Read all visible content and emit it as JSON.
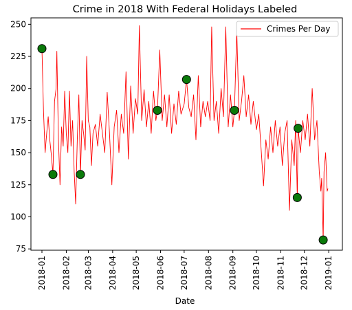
{
  "chart_data": {
    "type": "line",
    "title": "Crime in 2018 With Federal Holidays Labeled",
    "xlabel": "Date",
    "ylabel": "",
    "x_range": [
      "2018-01-01",
      "2018-12-31"
    ],
    "ylim": [
      74,
      255
    ],
    "x_ticks": [
      "2018-01",
      "2018-02",
      "2018-03",
      "2018-04",
      "2018-05",
      "2018-06",
      "2018-07",
      "2018-08",
      "2018-09",
      "2018-10",
      "2018-11",
      "2018-12",
      "2019-01"
    ],
    "y_ticks": [
      75,
      100,
      125,
      150,
      175,
      200,
      225,
      250
    ],
    "grid": false,
    "legend": {
      "position": "top-right",
      "entries": [
        "Crimes Per Day"
      ]
    },
    "colors": {
      "line": "#ff0000",
      "marker_fill": "#0a7a0a",
      "marker_edge": "#000000"
    },
    "series": [
      {
        "name": "Crimes Per Day",
        "points": [
          [
            "2018-01-01",
            231
          ],
          [
            "2018-01-03",
            182
          ],
          [
            "2018-01-05",
            150
          ],
          [
            "2018-01-07",
            165
          ],
          [
            "2018-01-09",
            178
          ],
          [
            "2018-01-11",
            160
          ],
          [
            "2018-01-13",
            148
          ],
          [
            "2018-01-15",
            133
          ],
          [
            "2018-01-17",
            190
          ],
          [
            "2018-01-19",
            200
          ],
          [
            "2018-01-20",
            229
          ],
          [
            "2018-01-22",
            160
          ],
          [
            "2018-01-24",
            125
          ],
          [
            "2018-01-26",
            170
          ],
          [
            "2018-01-28",
            155
          ],
          [
            "2018-01-30",
            198
          ],
          [
            "2018-02-01",
            165
          ],
          [
            "2018-02-03",
            150
          ],
          [
            "2018-02-05",
            198
          ],
          [
            "2018-02-07",
            155
          ],
          [
            "2018-02-09",
            175
          ],
          [
            "2018-02-11",
            135
          ],
          [
            "2018-02-13",
            110
          ],
          [
            "2018-02-15",
            160
          ],
          [
            "2018-02-17",
            195
          ],
          [
            "2018-02-19",
            133
          ],
          [
            "2018-02-21",
            175
          ],
          [
            "2018-02-23",
            165
          ],
          [
            "2018-02-25",
            152
          ],
          [
            "2018-02-27",
            225
          ],
          [
            "2018-03-01",
            175
          ],
          [
            "2018-03-03",
            170
          ],
          [
            "2018-03-05",
            140
          ],
          [
            "2018-03-07",
            165
          ],
          [
            "2018-03-10",
            172
          ],
          [
            "2018-03-13",
            155
          ],
          [
            "2018-03-16",
            180
          ],
          [
            "2018-03-19",
            165
          ],
          [
            "2018-03-22",
            150
          ],
          [
            "2018-03-25",
            197
          ],
          [
            "2018-03-28",
            165
          ],
          [
            "2018-03-31",
            125
          ],
          [
            "2018-04-03",
            170
          ],
          [
            "2018-04-06",
            183
          ],
          [
            "2018-04-09",
            150
          ],
          [
            "2018-04-12",
            180
          ],
          [
            "2018-04-15",
            165
          ],
          [
            "2018-04-18",
            213
          ],
          [
            "2018-04-21",
            145
          ],
          [
            "2018-04-24",
            202
          ],
          [
            "2018-04-27",
            165
          ],
          [
            "2018-04-30",
            192
          ],
          [
            "2018-05-03",
            180
          ],
          [
            "2018-05-05",
            249
          ],
          [
            "2018-05-08",
            175
          ],
          [
            "2018-05-11",
            199
          ],
          [
            "2018-05-14",
            170
          ],
          [
            "2018-05-17",
            190
          ],
          [
            "2018-05-20",
            165
          ],
          [
            "2018-05-23",
            198
          ],
          [
            "2018-05-26",
            175
          ],
          [
            "2018-05-28",
            183
          ],
          [
            "2018-05-31",
            230
          ],
          [
            "2018-06-03",
            175
          ],
          [
            "2018-06-06",
            195
          ],
          [
            "2018-06-09",
            170
          ],
          [
            "2018-06-12",
            195
          ],
          [
            "2018-06-15",
            165
          ],
          [
            "2018-06-18",
            188
          ],
          [
            "2018-06-21",
            172
          ],
          [
            "2018-06-24",
            198
          ],
          [
            "2018-06-27",
            180
          ],
          [
            "2018-07-01",
            188
          ],
          [
            "2018-07-04",
            207
          ],
          [
            "2018-07-07",
            185
          ],
          [
            "2018-07-10",
            178
          ],
          [
            "2018-07-13",
            195
          ],
          [
            "2018-07-16",
            160
          ],
          [
            "2018-07-19",
            210
          ],
          [
            "2018-07-22",
            170
          ],
          [
            "2018-07-25",
            190
          ],
          [
            "2018-07-28",
            178
          ],
          [
            "2018-07-31",
            190
          ],
          [
            "2018-08-03",
            175
          ],
          [
            "2018-08-05",
            248
          ],
          [
            "2018-08-08",
            175
          ],
          [
            "2018-08-11",
            190
          ],
          [
            "2018-08-14",
            165
          ],
          [
            "2018-08-17",
            200
          ],
          [
            "2018-08-20",
            178
          ],
          [
            "2018-08-23",
            248
          ],
          [
            "2018-08-26",
            170
          ],
          [
            "2018-08-29",
            195
          ],
          [
            "2018-09-01",
            170
          ],
          [
            "2018-09-03",
            183
          ],
          [
            "2018-09-06",
            245
          ],
          [
            "2018-09-09",
            175
          ],
          [
            "2018-09-12",
            190
          ],
          [
            "2018-09-15",
            210
          ],
          [
            "2018-09-18",
            178
          ],
          [
            "2018-09-21",
            195
          ],
          [
            "2018-09-24",
            172
          ],
          [
            "2018-09-27",
            190
          ],
          [
            "2018-10-01",
            168
          ],
          [
            "2018-10-04",
            180
          ],
          [
            "2018-10-07",
            152
          ],
          [
            "2018-10-10",
            124
          ],
          [
            "2018-10-13",
            160
          ],
          [
            "2018-10-16",
            145
          ],
          [
            "2018-10-19",
            170
          ],
          [
            "2018-10-22",
            150
          ],
          [
            "2018-10-25",
            175
          ],
          [
            "2018-10-28",
            155
          ],
          [
            "2018-10-31",
            170
          ],
          [
            "2018-11-03",
            140
          ],
          [
            "2018-11-06",
            165
          ],
          [
            "2018-11-09",
            175
          ],
          [
            "2018-11-12",
            105
          ],
          [
            "2018-11-15",
            160
          ],
          [
            "2018-11-18",
            140
          ],
          [
            "2018-11-20",
            175
          ],
          [
            "2018-11-22",
            115
          ],
          [
            "2018-11-23",
            169
          ],
          [
            "2018-11-26",
            150
          ],
          [
            "2018-11-29",
            175
          ],
          [
            "2018-12-02",
            160
          ],
          [
            "2018-12-05",
            180
          ],
          [
            "2018-12-08",
            155
          ],
          [
            "2018-12-11",
            200
          ],
          [
            "2018-12-14",
            160
          ],
          [
            "2018-12-17",
            175
          ],
          [
            "2018-12-20",
            135
          ],
          [
            "2018-12-22",
            120
          ],
          [
            "2018-12-23",
            130
          ],
          [
            "2018-12-25",
            82
          ],
          [
            "2018-12-26",
            135
          ],
          [
            "2018-12-28",
            150
          ],
          [
            "2018-12-30",
            120
          ],
          [
            "2018-12-31",
            122
          ]
        ]
      }
    ],
    "holidays": [
      [
        "2018-01-01",
        231
      ],
      [
        "2018-01-15",
        133
      ],
      [
        "2018-02-19",
        133
      ],
      [
        "2018-05-28",
        183
      ],
      [
        "2018-07-04",
        207
      ],
      [
        "2018-09-03",
        183
      ],
      [
        "2018-11-22",
        115
      ],
      [
        "2018-11-23",
        169
      ],
      [
        "2018-12-25",
        82
      ]
    ]
  }
}
